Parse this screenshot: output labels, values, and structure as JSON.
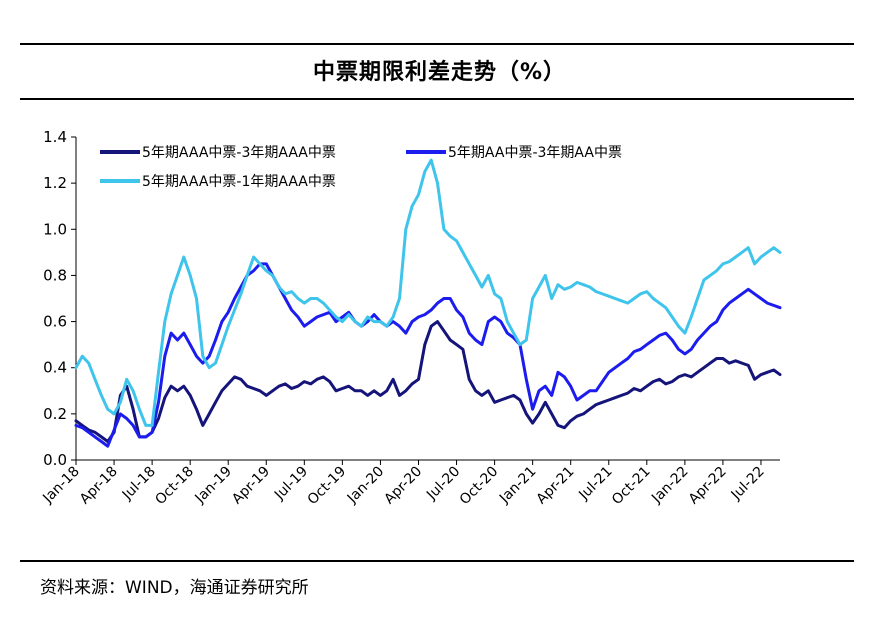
{
  "title": "中票期限利差走势（%）",
  "source": "资料来源：WIND，海通证券研究所",
  "chart_data": {
    "type": "line",
    "title": "中票期限利差走势（%）",
    "xlabel": "",
    "ylabel": "",
    "ylim": [
      0.0,
      1.4
    ],
    "yticks": [
      "0.0",
      "0.2",
      "0.4",
      "0.6",
      "0.8",
      "1.0",
      "1.2",
      "1.4"
    ],
    "xticks": [
      "Jan-18",
      "Apr-18",
      "Jul-18",
      "Oct-18",
      "Jan-19",
      "Apr-19",
      "Jul-19",
      "Oct-19",
      "Jan-20",
      "Apr-20",
      "Jul-20",
      "Oct-20",
      "Jan-21",
      "Apr-21",
      "Jul-21",
      "Oct-21",
      "Jan-22",
      "Apr-22",
      "Jul-22"
    ],
    "x_months": [
      0,
      0.5,
      1,
      1.5,
      2,
      2.5,
      3,
      3.5,
      4,
      4.5,
      5,
      5.5,
      6,
      6.5,
      7,
      7.5,
      8,
      8.5,
      9,
      9.5,
      10,
      10.5,
      11,
      11.5,
      12,
      12.5,
      13,
      13.5,
      14,
      14.5,
      15,
      15.5,
      16,
      16.5,
      17,
      17.5,
      18,
      18.5,
      19,
      19.5,
      20,
      20.5,
      21,
      21.5,
      22,
      22.5,
      23,
      23.5,
      24,
      24.5,
      25,
      25.5,
      26,
      26.5,
      27,
      27.5,
      28,
      28.5,
      29,
      29.5,
      30,
      30.5,
      31,
      31.5,
      32,
      32.5,
      33,
      33.5,
      34,
      34.5,
      35,
      35.5,
      36,
      36.5,
      37,
      37.5,
      38,
      38.5,
      39,
      39.5,
      40,
      40.5,
      41,
      41.5,
      42,
      42.5,
      43,
      43.5,
      44,
      44.5,
      45,
      45.5,
      46,
      46.5,
      47,
      47.5,
      48,
      48.5,
      49,
      49.5,
      50,
      50.5,
      51,
      51.5,
      52,
      52.5,
      53,
      53.5,
      54,
      54.5,
      55,
      55.5
    ],
    "series": [
      {
        "name": "5年期AAA中票-3年期AAA中票",
        "color": "#14147a",
        "values": [
          0.17,
          0.15,
          0.13,
          0.12,
          0.1,
          0.08,
          0.12,
          0.28,
          0.32,
          0.22,
          0.1,
          0.1,
          0.12,
          0.18,
          0.27,
          0.32,
          0.3,
          0.32,
          0.28,
          0.22,
          0.15,
          0.2,
          0.25,
          0.3,
          0.33,
          0.36,
          0.35,
          0.32,
          0.31,
          0.3,
          0.28,
          0.3,
          0.32,
          0.33,
          0.31,
          0.32,
          0.34,
          0.33,
          0.35,
          0.36,
          0.34,
          0.3,
          0.31,
          0.32,
          0.3,
          0.3,
          0.28,
          0.3,
          0.28,
          0.3,
          0.35,
          0.28,
          0.3,
          0.33,
          0.35,
          0.5,
          0.58,
          0.6,
          0.56,
          0.52,
          0.5,
          0.48,
          0.35,
          0.3,
          0.28,
          0.3,
          0.25,
          0.26,
          0.27,
          0.28,
          0.26,
          0.2,
          0.16,
          0.2,
          0.25,
          0.2,
          0.15,
          0.14,
          0.17,
          0.19,
          0.2,
          0.22,
          0.24,
          0.25,
          0.26,
          0.27,
          0.28,
          0.29,
          0.31,
          0.3,
          0.32,
          0.34,
          0.35,
          0.33,
          0.34,
          0.36,
          0.37,
          0.36,
          0.38,
          0.4,
          0.42,
          0.44,
          0.44,
          0.42,
          0.43,
          0.42,
          0.41,
          0.35,
          0.37,
          0.38,
          0.39,
          0.37
        ]
      },
      {
        "name": "5年期AA中票-3年期AA中票",
        "color": "#1c1cee",
        "values": [
          0.15,
          0.14,
          0.12,
          0.1,
          0.08,
          0.06,
          0.13,
          0.2,
          0.18,
          0.15,
          0.1,
          0.1,
          0.12,
          0.25,
          0.45,
          0.55,
          0.52,
          0.55,
          0.5,
          0.45,
          0.42,
          0.45,
          0.52,
          0.6,
          0.64,
          0.7,
          0.75,
          0.8,
          0.82,
          0.85,
          0.85,
          0.8,
          0.75,
          0.7,
          0.65,
          0.62,
          0.58,
          0.6,
          0.62,
          0.63,
          0.64,
          0.6,
          0.62,
          0.64,
          0.6,
          0.58,
          0.6,
          0.63,
          0.6,
          0.58,
          0.6,
          0.58,
          0.55,
          0.6,
          0.62,
          0.63,
          0.65,
          0.68,
          0.7,
          0.7,
          0.65,
          0.62,
          0.55,
          0.52,
          0.5,
          0.6,
          0.62,
          0.6,
          0.55,
          0.53,
          0.5,
          0.35,
          0.22,
          0.3,
          0.32,
          0.28,
          0.38,
          0.36,
          0.32,
          0.26,
          0.28,
          0.3,
          0.3,
          0.34,
          0.38,
          0.4,
          0.42,
          0.44,
          0.47,
          0.48,
          0.5,
          0.52,
          0.54,
          0.55,
          0.52,
          0.48,
          0.46,
          0.48,
          0.52,
          0.55,
          0.58,
          0.6,
          0.65,
          0.68,
          0.7,
          0.72,
          0.74,
          0.72,
          0.7,
          0.68,
          0.67,
          0.66
        ]
      },
      {
        "name": "5年期AAA中票-1年期AAA中票",
        "color": "#3fc4ec",
        "values": [
          0.4,
          0.45,
          0.42,
          0.35,
          0.28,
          0.22,
          0.2,
          0.25,
          0.35,
          0.3,
          0.22,
          0.15,
          0.15,
          0.38,
          0.6,
          0.72,
          0.8,
          0.88,
          0.8,
          0.7,
          0.45,
          0.4,
          0.42,
          0.5,
          0.58,
          0.65,
          0.72,
          0.8,
          0.88,
          0.85,
          0.82,
          0.8,
          0.75,
          0.72,
          0.73,
          0.7,
          0.68,
          0.7,
          0.7,
          0.68,
          0.65,
          0.62,
          0.6,
          0.63,
          0.6,
          0.58,
          0.62,
          0.6,
          0.6,
          0.58,
          0.62,
          0.7,
          1.0,
          1.1,
          1.15,
          1.25,
          1.3,
          1.2,
          1.0,
          0.97,
          0.95,
          0.9,
          0.85,
          0.8,
          0.75,
          0.8,
          0.72,
          0.7,
          0.6,
          0.55,
          0.5,
          0.52,
          0.7,
          0.75,
          0.8,
          0.7,
          0.76,
          0.74,
          0.75,
          0.77,
          0.76,
          0.75,
          0.73,
          0.72,
          0.71,
          0.7,
          0.69,
          0.68,
          0.7,
          0.72,
          0.73,
          0.7,
          0.68,
          0.66,
          0.62,
          0.58,
          0.55,
          0.62,
          0.7,
          0.78,
          0.8,
          0.82,
          0.85,
          0.86,
          0.88,
          0.9,
          0.92,
          0.85,
          0.88,
          0.9,
          0.92,
          0.9
        ]
      }
    ],
    "legend": "top-left"
  }
}
